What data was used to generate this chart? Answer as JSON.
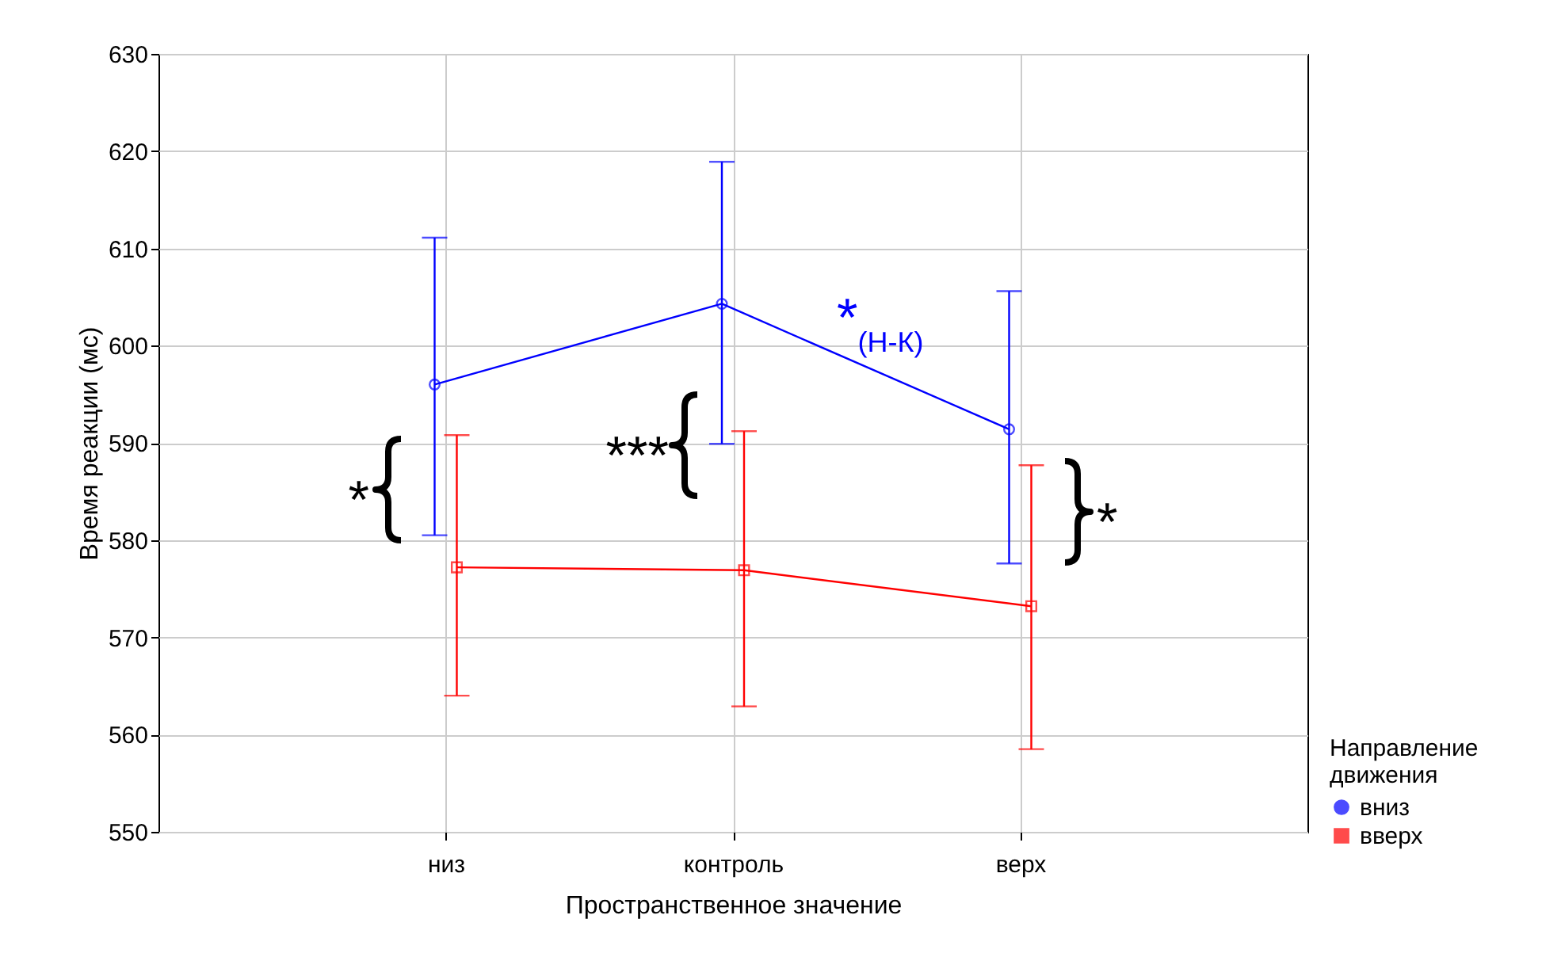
{
  "chart_data": {
    "type": "line",
    "xlabel": "Пространственное значение",
    "ylabel": "Время реакции (мс)",
    "legend_title": "Направление движения",
    "categories": [
      "низ",
      "контроль",
      "верх"
    ],
    "series": [
      {
        "name": "вниз",
        "color": "#0000ff",
        "marker": "circle",
        "values": [
          596.0,
          604.3,
          591.4
        ],
        "errors": [
          [
            580.5,
            611.1
          ],
          [
            589.9,
            618.9
          ],
          [
            577.6,
            605.6
          ]
        ]
      },
      {
        "name": "вверх",
        "color": "#ff0000",
        "marker": "square",
        "values": [
          577.2,
          576.9,
          573.2
        ],
        "errors": [
          [
            564.0,
            590.8
          ],
          [
            562.9,
            591.2
          ],
          [
            558.5,
            587.7
          ]
        ]
      }
    ],
    "ylim": [
      550,
      630
    ],
    "yticks": [
      550,
      560,
      570,
      580,
      590,
      600,
      610,
      620,
      630
    ],
    "grid": true,
    "legend": "bottom right",
    "annotations": [
      "*",
      "***",
      "*",
      "*$_{(Н-К)}$"
    ]
  }
}
